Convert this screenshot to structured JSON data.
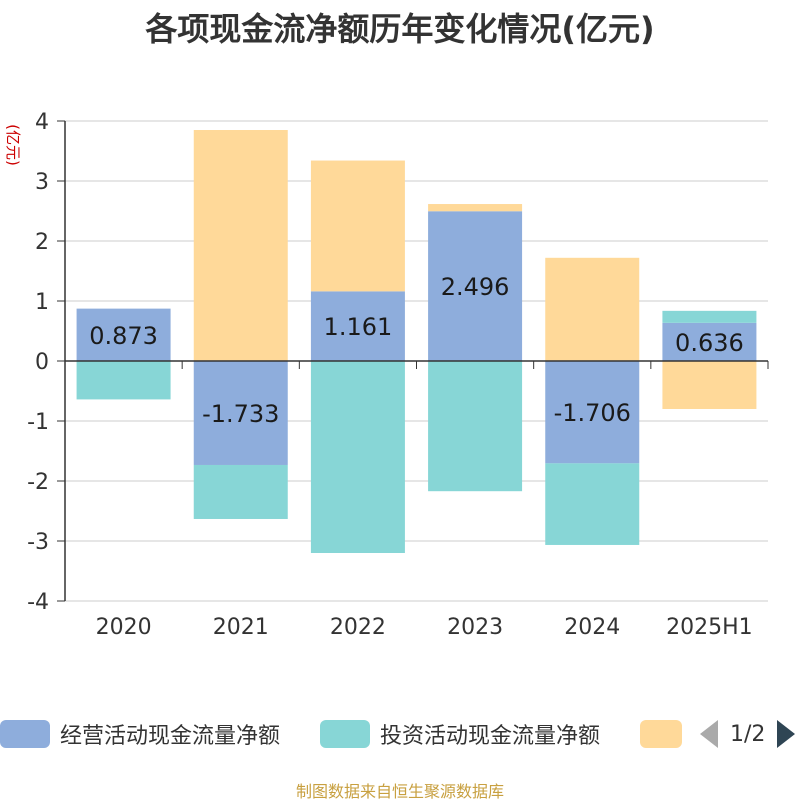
{
  "title": "各项现金流净额历年变化情况(亿元)",
  "source": "制图数据来自恒生聚源数据库",
  "legend": {
    "page": "1/2"
  },
  "chart_data": {
    "type": "bar",
    "stacked": true,
    "ylabel": "(亿元)",
    "ylim": [
      -4,
      4
    ],
    "yticks": [
      -4,
      -3,
      -2,
      -1,
      0,
      1,
      2,
      3,
      4
    ],
    "grid": true,
    "legend_position": "bottom",
    "categories": [
      "2020",
      "2021",
      "2022",
      "2023",
      "2024",
      "2025H1"
    ],
    "series": [
      {
        "name": "经营活动现金流量净额",
        "color": "#8eaddc",
        "values": [
          0.873,
          -1.733,
          1.161,
          2.496,
          -1.706,
          0.636
        ],
        "labels": [
          "0.873",
          "-1.733",
          "1.161",
          "2.496",
          "-1.706",
          "0.636"
        ]
      },
      {
        "name": "投资活动现金流量净额",
        "color": "#87d6d6",
        "values": [
          -0.64,
          -0.9,
          -3.2,
          -2.17,
          -1.36,
          0.2
        ]
      },
      {
        "name": "",
        "color": "#ffd999",
        "values": [
          0,
          3.85,
          2.18,
          0.12,
          1.72,
          -0.8
        ]
      }
    ]
  }
}
